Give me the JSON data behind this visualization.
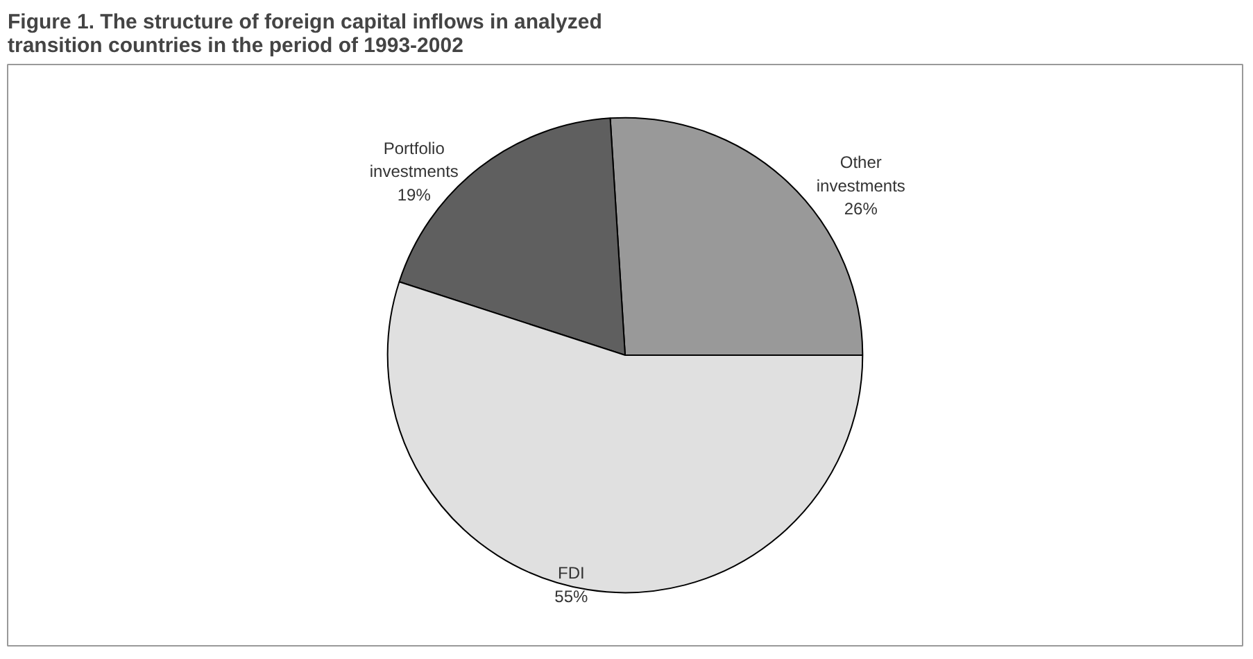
{
  "chart_data": {
    "type": "pie",
    "title": "Figure 1.  The structure of foreign capital inflows in analyzed transition countries in the period of 1993-2002",
    "categories": [
      "Other investments",
      "Portfolio investments",
      "FDI"
    ],
    "values": [
      26,
      19,
      55
    ],
    "colors": [
      "#999999",
      "#5f5f5f",
      "#e0e0e0"
    ],
    "value_labels": [
      "26%",
      "19%",
      "55%"
    ]
  }
}
